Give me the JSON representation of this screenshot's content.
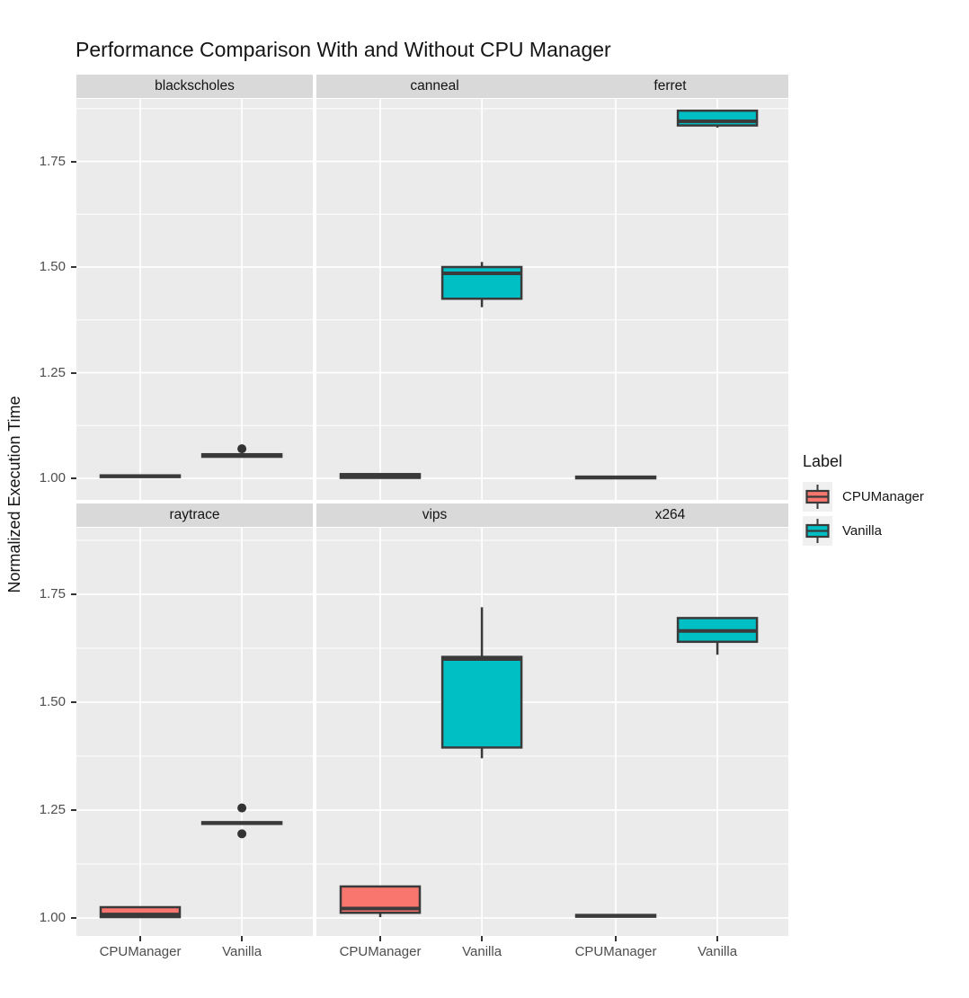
{
  "colors": {
    "page_bg": "#FFFFFF",
    "panel_bg": "#EBEBEB",
    "strip_bg": "#D9D9D9",
    "grid": "#FFFFFF",
    "box_stroke": "#3A3A3A",
    "outlier": "#333333",
    "tick_mark": "#333333",
    "tick_label": "#4D4D4D",
    "text": "#151515",
    "legend_key_bg": "#F0F0F0",
    "cpumanager_fill": "#F8766D",
    "vanilla_fill": "#00BFC4"
  },
  "chart_data": {
    "type": "boxplot",
    "title": "Performance Comparison With and Without CPU Manager",
    "ylabel": "Normalized Execution Time",
    "xlabel": "",
    "facet_layout": {
      "rows": 2,
      "cols": 3
    },
    "x_categories": [
      "CPUManager",
      "Vanilla"
    ],
    "y_ticks": [
      1.0,
      1.25,
      1.5,
      1.75
    ],
    "y_tick_labels": [
      "1.00",
      "1.25",
      "1.50",
      "1.75"
    ],
    "ylim": [
      0.953,
      1.905
    ],
    "grid": {
      "major": true,
      "minor": true
    },
    "legend": {
      "title": "Label",
      "position": "right",
      "entries": [
        {
          "label": "CPUManager",
          "color": "#F8766D"
        },
        {
          "label": "Vanilla",
          "color": "#00BFC4"
        }
      ]
    },
    "facets": [
      {
        "name": "blackscholes",
        "boxes": [
          {
            "group": "CPUManager",
            "min": 1.002,
            "q1": 1.003,
            "median": 1.005,
            "q3": 1.007,
            "max": 1.008,
            "outliers": []
          },
          {
            "group": "Vanilla",
            "min": 1.05,
            "q1": 1.051,
            "median": 1.054,
            "q3": 1.057,
            "max": 1.058,
            "outliers": [
              1.07
            ]
          }
        ]
      },
      {
        "name": "canneal",
        "boxes": [
          {
            "group": "CPUManager",
            "min": 1.0,
            "q1": 1.001,
            "median": 1.005,
            "q3": 1.01,
            "max": 1.012,
            "outliers": []
          },
          {
            "group": "Vanilla",
            "min": 1.405,
            "q1": 1.425,
            "median": 1.485,
            "q3": 1.5,
            "max": 1.512,
            "outliers": []
          }
        ]
      },
      {
        "name": "ferret",
        "boxes": [
          {
            "group": "CPUManager",
            "min": 1.0,
            "q1": 1.0,
            "median": 1.002,
            "q3": 1.004,
            "max": 1.005,
            "outliers": []
          },
          {
            "group": "Vanilla",
            "min": 1.83,
            "q1": 1.835,
            "median": 1.845,
            "q3": 1.87,
            "max": 1.872,
            "outliers": []
          }
        ]
      },
      {
        "name": "raytrace",
        "boxes": [
          {
            "group": "CPUManager",
            "min": 1.0,
            "q1": 1.002,
            "median": 1.008,
            "q3": 1.025,
            "max": 1.026,
            "outliers": []
          },
          {
            "group": "Vanilla",
            "min": 1.218,
            "q1": 1.218,
            "median": 1.22,
            "q3": 1.222,
            "max": 1.222,
            "outliers": [
              1.255,
              1.195
            ]
          }
        ]
      },
      {
        "name": "vips",
        "boxes": [
          {
            "group": "CPUManager",
            "min": 1.002,
            "q1": 1.012,
            "median": 1.022,
            "q3": 1.073,
            "max": 1.075,
            "outliers": []
          },
          {
            "group": "Vanilla",
            "min": 1.37,
            "q1": 1.395,
            "median": 1.6,
            "q3": 1.605,
            "max": 1.72,
            "outliers": []
          }
        ]
      },
      {
        "name": "x264",
        "boxes": [
          {
            "group": "CPUManager",
            "min": 1.002,
            "q1": 1.003,
            "median": 1.005,
            "q3": 1.007,
            "max": 1.008,
            "outliers": []
          },
          {
            "group": "Vanilla",
            "min": 1.61,
            "q1": 1.64,
            "median": 1.665,
            "q3": 1.695,
            "max": 1.696,
            "outliers": []
          }
        ]
      }
    ]
  }
}
